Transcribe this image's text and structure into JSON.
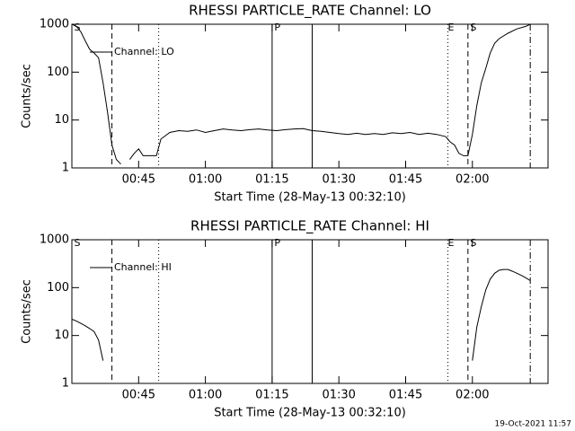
{
  "chart_data": [
    {
      "type": "line",
      "title": "RHESSI PARTICLE_RATE Channel: LO",
      "xlabel": "Start Time (28-May-13 00:32:10)",
      "ylabel": "Counts/sec",
      "x": [
        "00:30",
        "00:31",
        "00:32",
        "00:33",
        "00:34",
        "00:35",
        "00:36",
        "00:37",
        "00:38",
        "00:39",
        "00:40",
        "00:41",
        "00:42",
        "00:43",
        "00:44",
        "00:45",
        "00:46",
        "00:47",
        "00:48",
        "00:49",
        "00:50",
        "00:52",
        "00:54",
        "00:56",
        "00:58",
        "01:00",
        "01:02",
        "01:04",
        "01:06",
        "01:08",
        "01:10",
        "01:12",
        "01:14",
        "01:16",
        "01:18",
        "01:20",
        "01:22",
        "01:24",
        "01:26",
        "01:28",
        "01:30",
        "01:32",
        "01:34",
        "01:36",
        "01:38",
        "01:40",
        "01:42",
        "01:44",
        "01:46",
        "01:48",
        "01:50",
        "01:52",
        "01:54",
        "01:55",
        "01:56",
        "01:57",
        "01:58",
        "01:59",
        "02:00",
        "02:01",
        "02:02",
        "02:03",
        "02:04",
        "02:05",
        "02:06",
        "02:08",
        "02:10",
        "02:12",
        "02:13"
      ],
      "series": [
        {
          "name": "Channel: LO",
          "color": "#000000",
          "values": [
            1000,
            900,
            700,
            450,
            300,
            250,
            200,
            60,
            15,
            3,
            1.5,
            1.2,
            null,
            1.5,
            2,
            2.5,
            1.8,
            1.8,
            1.8,
            1.8,
            4,
            5.5,
            6,
            5.8,
            6.2,
            5.5,
            6,
            6.5,
            6.2,
            6,
            6.3,
            6.5,
            6.2,
            6,
            6.3,
            6.5,
            6.6,
            6,
            5.8,
            5.5,
            5.2,
            5,
            5.3,
            5,
            5.2,
            5,
            5.4,
            5.2,
            5.5,
            5,
            5.3,
            5,
            4.5,
            3.5,
            3,
            2,
            1.8,
            1.8,
            5,
            20,
            60,
            120,
            250,
            400,
            500,
            650,
            800,
            900,
            1000
          ]
        }
      ],
      "xlim": [
        "00:30",
        "02:17"
      ],
      "xticks": [
        "00:45",
        "01:00",
        "01:15",
        "01:30",
        "01:45",
        "02:00"
      ],
      "ylim": [
        1,
        1000
      ],
      "yticks": [
        1,
        10,
        100,
        1000
      ],
      "log_y": true,
      "legend": "upper left",
      "markers": [
        {
          "x": "00:39",
          "style": "dashed"
        },
        {
          "x": "00:49.5",
          "style": "dotted"
        },
        {
          "x": "01:15",
          "style": "solid"
        },
        {
          "x": "01:24",
          "style": "solid"
        },
        {
          "x": "01:54.5",
          "style": "dotted"
        },
        {
          "x": "01:59",
          "style": "dashed"
        },
        {
          "x": "02:13",
          "style": "dash-dot"
        }
      ],
      "marker_labels": [
        {
          "x": "00:30.5",
          "text": "S"
        },
        {
          "x": "01:15.5",
          "text": "P"
        },
        {
          "x": "01:54.5",
          "text": "E"
        },
        {
          "x": "01:59.5",
          "text": "S"
        }
      ]
    },
    {
      "type": "line",
      "title": "RHESSI PARTICLE_RATE Channel: HI",
      "xlabel": "Start Time (28-May-13 00:32:10)",
      "ylabel": "Counts/sec",
      "x": [
        "00:30",
        "00:31",
        "00:32",
        "00:33",
        "00:34",
        "00:35",
        "00:36",
        "00:37",
        "00:38",
        "02:00",
        "02:01",
        "02:02",
        "02:03",
        "02:04",
        "02:05",
        "02:06",
        "02:07",
        "02:08",
        "02:09",
        "02:10",
        "02:11",
        "02:12",
        "02:13"
      ],
      "series": [
        {
          "name": "Channel: HI",
          "color": "#000000",
          "values": [
            22,
            20,
            18,
            16,
            14,
            12,
            8,
            3,
            null,
            3,
            15,
            40,
            90,
            150,
            200,
            230,
            240,
            240,
            220,
            200,
            180,
            160,
            140
          ]
        }
      ],
      "xlim": [
        "00:30",
        "02:17"
      ],
      "xticks": [
        "00:45",
        "01:00",
        "01:15",
        "01:30",
        "01:45",
        "02:00"
      ],
      "ylim": [
        1,
        1000
      ],
      "yticks": [
        1,
        10,
        100,
        1000
      ],
      "log_y": true,
      "legend": "upper left",
      "markers": [
        {
          "x": "00:39",
          "style": "dashed"
        },
        {
          "x": "00:49.5",
          "style": "dotted"
        },
        {
          "x": "01:15",
          "style": "solid"
        },
        {
          "x": "01:24",
          "style": "solid"
        },
        {
          "x": "01:54.5",
          "style": "dotted"
        },
        {
          "x": "01:59",
          "style": "dashed"
        },
        {
          "x": "02:13",
          "style": "dash-dot"
        }
      ],
      "marker_labels": [
        {
          "x": "00:30.5",
          "text": "S"
        },
        {
          "x": "01:15.5",
          "text": "P"
        },
        {
          "x": "01:54.5",
          "text": "E"
        },
        {
          "x": "01:59.5",
          "text": "S"
        }
      ]
    }
  ],
  "footer": "19-Oct-2021 11:57"
}
